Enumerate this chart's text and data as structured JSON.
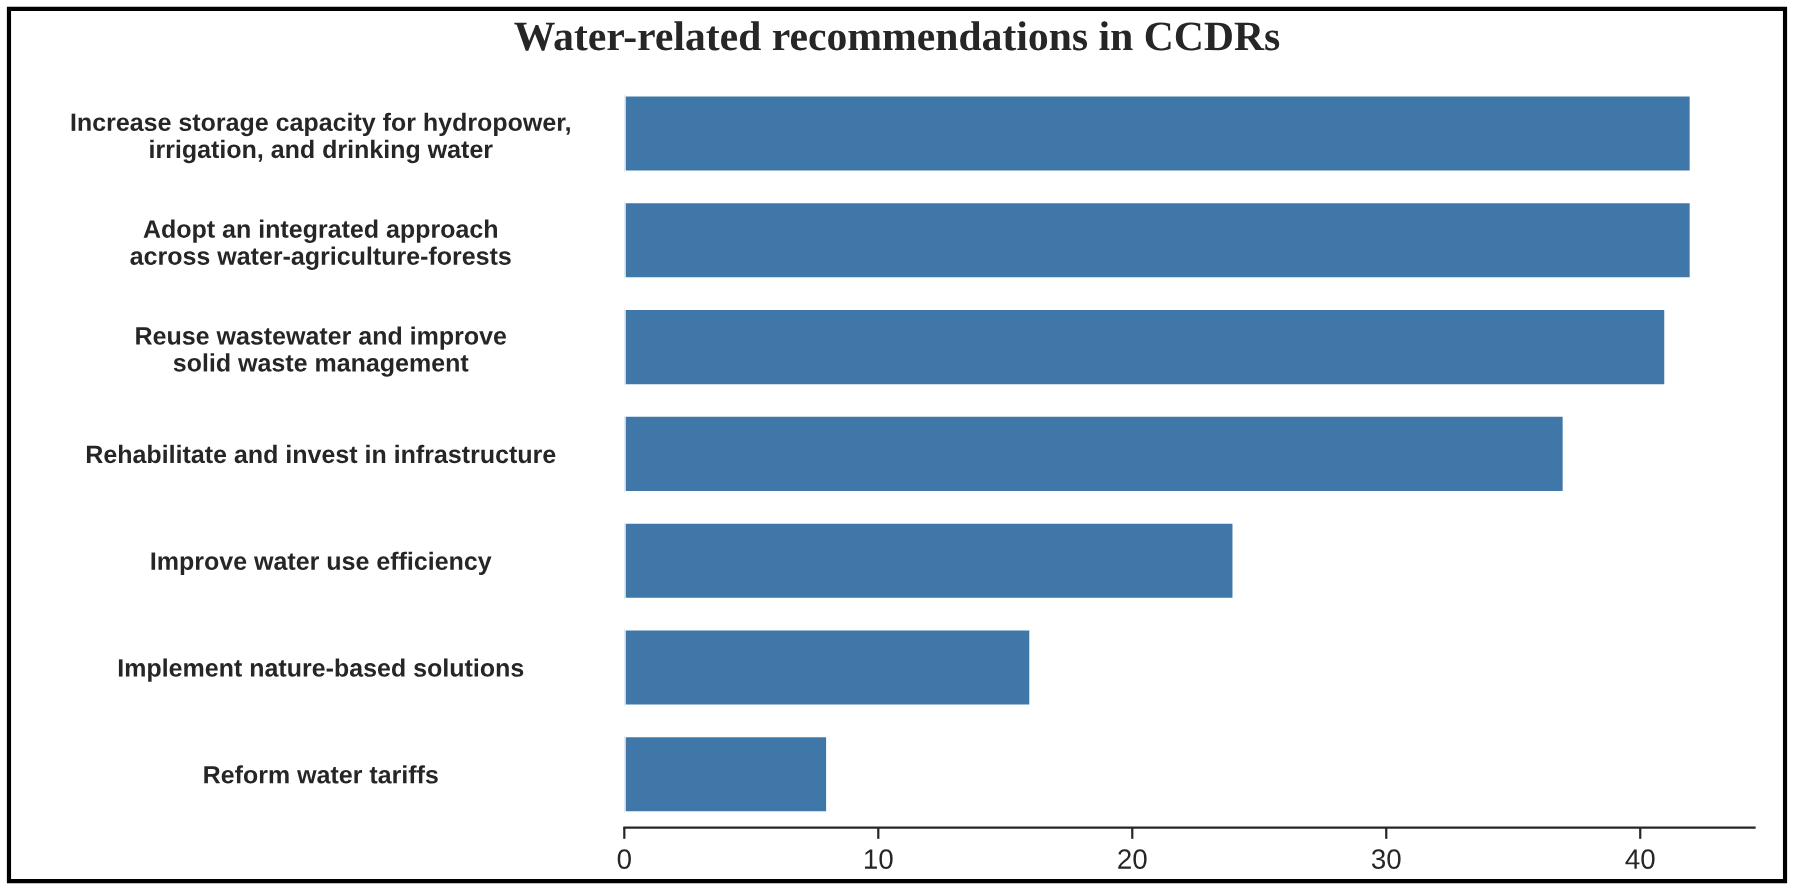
{
  "chart_data": {
    "type": "bar",
    "orientation": "horizontal",
    "title": "Water-related recommendations in CCDRs",
    "categories": [
      "Increase storage capacity for hydropower,\nirrigation, and drinking water",
      "Adopt an integrated approach\nacross water-agriculture-forests",
      "Reuse wastewater and improve\nsolid waste management",
      "Rehabilitate and invest in infrastructure",
      "Improve water use efficiency",
      "Implement nature-based solutions",
      "Reform water tariffs"
    ],
    "values": [
      42,
      42,
      41,
      37,
      24,
      16,
      8
    ],
    "color": "#3f77a8",
    "xlim": [
      0,
      44.5
    ],
    "xticks": [
      0,
      10,
      20,
      30,
      40
    ],
    "grid": false,
    "legend": false
  }
}
